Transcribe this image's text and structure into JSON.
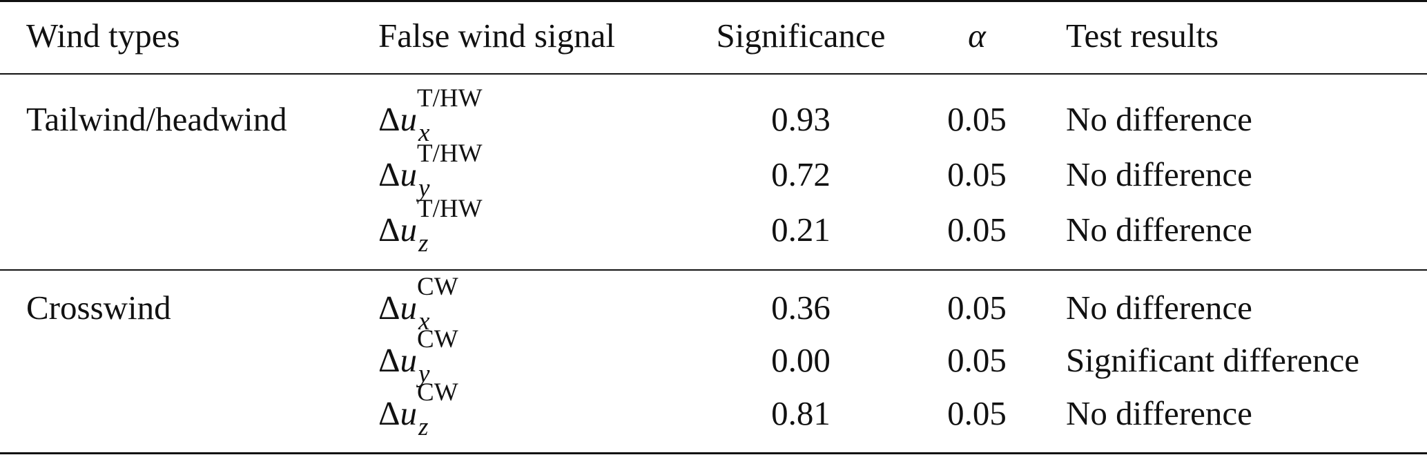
{
  "table": {
    "headers": {
      "wind_types": "Wind types",
      "false_wind_signal": "False wind signal",
      "significance": "Significance",
      "alpha": "α",
      "test_results": "Test results"
    },
    "groups": [
      {
        "wind_type": "Tailwind/headwind",
        "rows": [
          {
            "signal_base": "Δ",
            "signal_var": "u",
            "signal_sub": "x",
            "signal_sup": "T/HW",
            "significance": "0.93",
            "alpha": "0.05",
            "result": "No difference"
          },
          {
            "signal_base": "Δ",
            "signal_var": "u",
            "signal_sub": "y",
            "signal_sup": "T/HW",
            "significance": "0.72",
            "alpha": "0.05",
            "result": "No difference"
          },
          {
            "signal_base": "Δ",
            "signal_var": "u",
            "signal_sub": "z",
            "signal_sup": "T/HW",
            "significance": "0.21",
            "alpha": "0.05",
            "result": "No difference"
          }
        ]
      },
      {
        "wind_type": "Crosswind",
        "rows": [
          {
            "signal_base": "Δ",
            "signal_var": "u",
            "signal_sub": "x",
            "signal_sup": "CW",
            "significance": "0.36",
            "alpha": "0.05",
            "result": "No difference"
          },
          {
            "signal_base": "Δ",
            "signal_var": "u",
            "signal_sub": "y",
            "signal_sup": "CW",
            "significance": "0.00",
            "alpha": "0.05",
            "result": "Significant difference"
          },
          {
            "signal_base": "Δ",
            "signal_var": "u",
            "signal_sub": "z",
            "signal_sup": "CW",
            "significance": "0.81",
            "alpha": "0.05",
            "result": "No difference"
          }
        ]
      }
    ]
  }
}
